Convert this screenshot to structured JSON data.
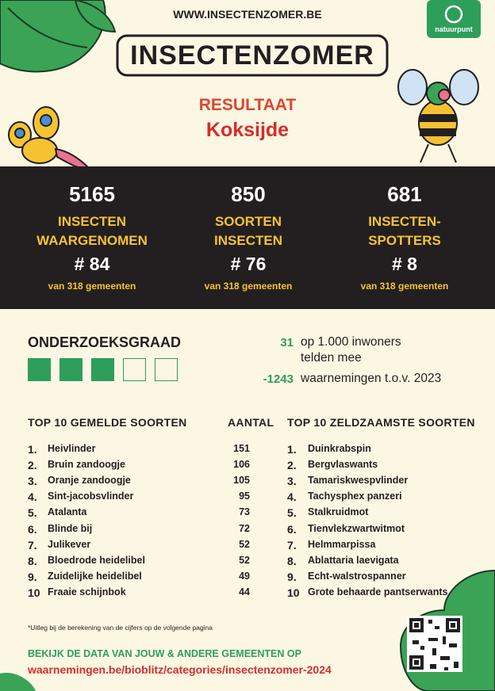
{
  "header": {
    "url": "WWW.INSECTENZOMER.BE",
    "logo": "INSECTENZOMER",
    "brand": "natuurpunt"
  },
  "result": {
    "label": "RESULTAAT",
    "place": "Koksijde"
  },
  "stats": [
    {
      "value": 5165,
      "line1": "INSECTEN",
      "line2": "WAARGENOMEN",
      "rank": "# 84",
      "note": "van 318 gemeenten"
    },
    {
      "value": 850,
      "line1": "SOORTEN",
      "line2": "INSECTEN",
      "rank": "# 76",
      "note": "van 318 gemeenten"
    },
    {
      "value": 681,
      "line1": "INSECTEN-",
      "line2": "SPOTTERS",
      "rank": "# 8",
      "note": "van 318 gemeenten"
    }
  ],
  "research": {
    "title": "ONDERZOEKSGRAAD",
    "filled": 3,
    "total": 5,
    "participation": {
      "value": 31,
      "line1": "op 1.000 inwoners",
      "line2": "telden mee"
    },
    "change": {
      "value": -1243,
      "text": "waarnemingen t.o.v. 2023"
    }
  },
  "top_reported": {
    "title": "TOP 10 GEMELDE SOORTEN",
    "count_title": "AANTAL",
    "rows": [
      {
        "rank": "1.",
        "name": "Heivlinder",
        "count": 151
      },
      {
        "rank": "2.",
        "name": "Bruin zandoogje",
        "count": 106
      },
      {
        "rank": "3.",
        "name": "Oranje zandoogje",
        "count": 105
      },
      {
        "rank": "4.",
        "name": "Sint-jacobsvlinder",
        "count": 95
      },
      {
        "rank": "5.",
        "name": "Atalanta",
        "count": 73
      },
      {
        "rank": "6.",
        "name": "Blinde bij",
        "count": 72
      },
      {
        "rank": "7.",
        "name": "Julikever",
        "count": 52
      },
      {
        "rank": "8.",
        "name": "Bloedrode heidelibel",
        "count": 52
      },
      {
        "rank": "9.",
        "name": "Zuidelijke heidelibel",
        "count": 49
      },
      {
        "rank": "10",
        "name": "Fraaie schijnbok",
        "count": 44
      }
    ]
  },
  "top_rare": {
    "title": "TOP 10 ZELDZAAMSTE SOORTEN",
    "rows": [
      {
        "rank": "1.",
        "name": "Duinkrabspin"
      },
      {
        "rank": "2.",
        "name": "Bergvlaswants"
      },
      {
        "rank": "3.",
        "name": "Tamariskwespvlinder"
      },
      {
        "rank": "4.",
        "name": "Tachysphex panzeri"
      },
      {
        "rank": "5.",
        "name": "Stalkruidmot"
      },
      {
        "rank": "6.",
        "name": "Tienvlekzwartwitmot"
      },
      {
        "rank": "7.",
        "name": "Helmmarpissa"
      },
      {
        "rank": "8.",
        "name": "Ablattaria laevigata"
      },
      {
        "rank": "9.",
        "name": "Echt-walstrospanner"
      },
      {
        "rank": "10",
        "name": "Grote behaarde pantserwants"
      }
    ]
  },
  "footnote": "*Uitleg bij de berekening van de cijfers op de volgende pagina",
  "cta": {
    "line1": "BEKIJK DE DATA VAN JOUW & ANDERE GEMEENTEN OP",
    "link": "waarnemingen.be/bioblitz/categories/insectenzomer-2024"
  }
}
